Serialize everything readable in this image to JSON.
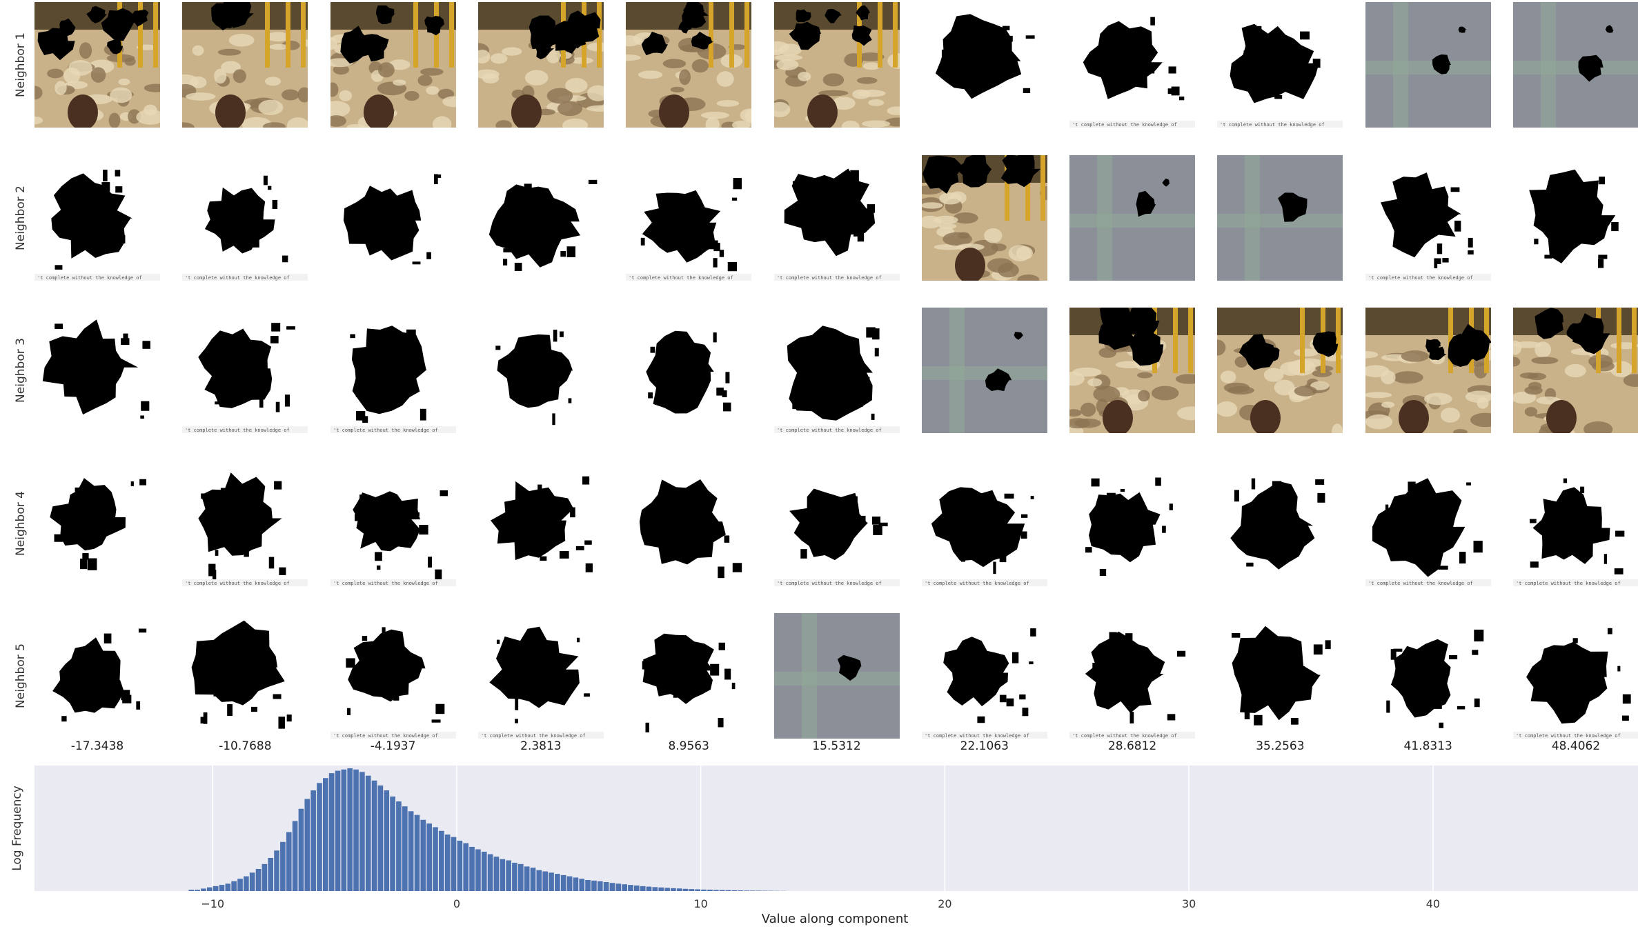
{
  "figure": {
    "row_labels": [
      "Neighbor 1",
      "Neighbor 2",
      "Neighbor 3",
      "Neighbor 4",
      "Neighbor 5"
    ],
    "column_values": [
      "-17.3438",
      "-10.7688",
      "-4.1937",
      "2.3813",
      "8.9563",
      "15.5312",
      "22.1063",
      "28.6812",
      "35.2563",
      "41.8313",
      "48.4062"
    ],
    "tiles": [
      [
        "sand",
        "sand",
        "sand",
        "sand",
        "sand",
        "sand",
        "blob",
        "blob",
        "blob",
        "haze",
        "haze"
      ],
      [
        "blob",
        "blob",
        "blob",
        "blob",
        "blob",
        "blob",
        "sand",
        "haze",
        "haze",
        "blob",
        "blob"
      ],
      [
        "blob",
        "blob",
        "blob",
        "blob",
        "blob",
        "blob",
        "haze",
        "sand",
        "sand",
        "sand",
        "sand"
      ],
      [
        "blob",
        "blob",
        "blob",
        "blob",
        "blob",
        "blob",
        "blob",
        "blob",
        "blob",
        "blob",
        "blob"
      ],
      [
        "blob",
        "blob",
        "blob",
        "blob",
        "blob",
        "haze",
        "blob",
        "blob",
        "blob",
        "blob",
        "blob"
      ]
    ],
    "tile_caption": "'t complete without the knowledge of"
  },
  "chart_data": {
    "type": "bar",
    "title": "",
    "xlabel": "Value along component",
    "ylabel": "Log Frequency",
    "xlim": [
      -17.3,
      48.4
    ],
    "xticks": [
      -10,
      0,
      10,
      20,
      30,
      40
    ],
    "grid": true,
    "bar_color": "#4c72b0",
    "background": "#eaeaf2",
    "bin_width": 0.25,
    "bin_start": -11.0,
    "values": [
      1,
      1,
      2,
      3,
      4,
      5,
      6,
      8,
      10,
      12,
      15,
      18,
      22,
      27,
      33,
      40,
      48,
      57,
      67,
      75,
      82,
      88,
      92,
      96,
      98,
      99,
      100,
      99,
      97,
      94,
      90,
      86,
      82,
      77,
      73,
      69,
      65,
      62,
      58,
      55,
      52,
      49,
      46,
      44,
      41,
      39,
      36,
      34,
      32,
      30,
      28,
      26,
      25,
      23,
      22,
      20,
      19,
      17,
      16,
      15,
      14,
      13,
      12,
      11,
      10,
      9,
      8.5,
      8,
      7.3,
      6.6,
      6,
      5.5,
      5,
      4.5,
      4,
      3.6,
      3.2,
      2.9,
      2.6,
      2.3,
      2.1,
      1.8,
      1.6,
      1.4,
      1.2,
      1.1,
      0.9,
      0.8,
      0.7,
      0.6,
      0.5,
      0.4,
      0.35,
      0.3,
      0.25,
      0.2,
      0.15,
      0.1
    ]
  }
}
